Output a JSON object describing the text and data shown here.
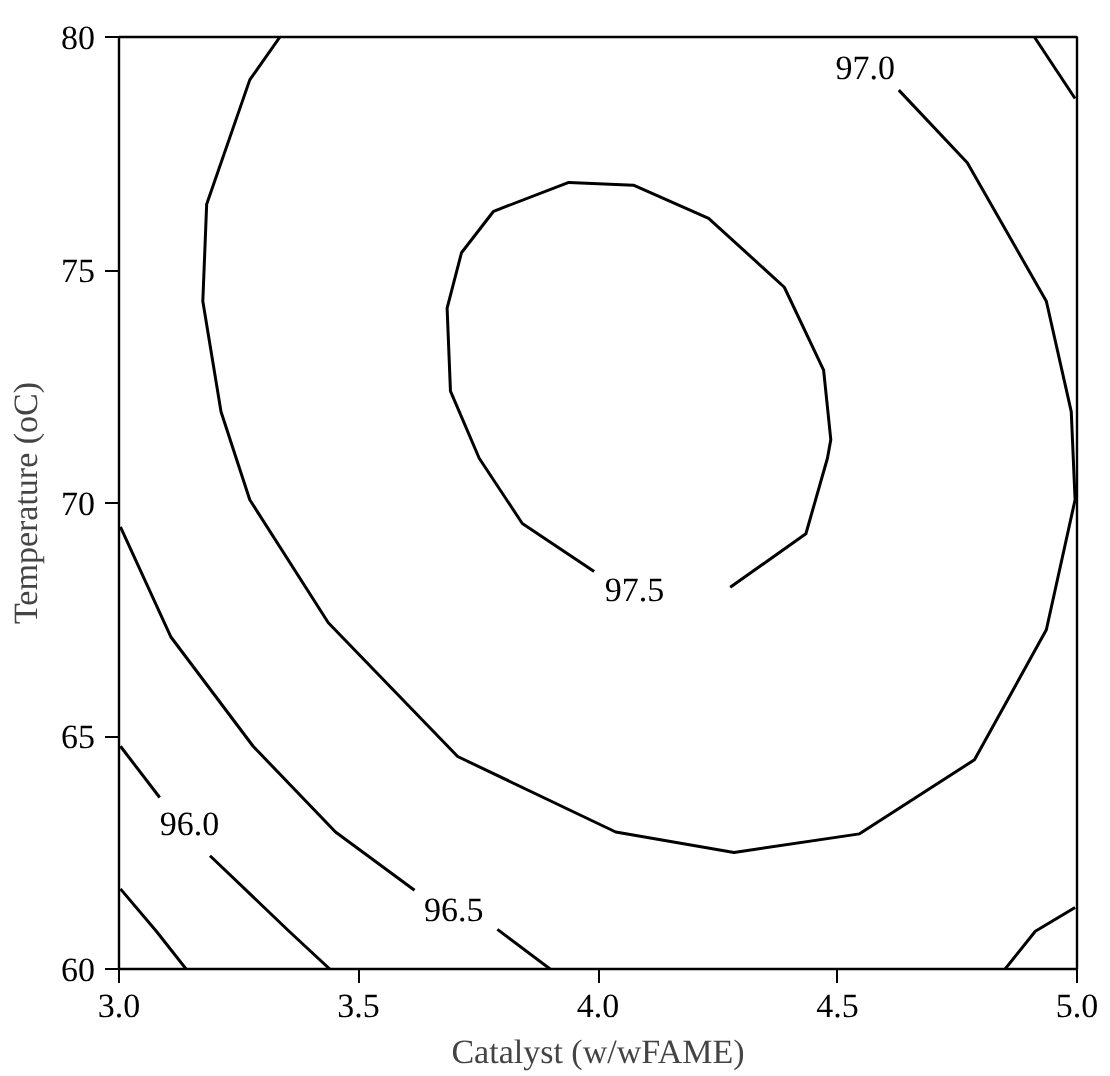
{
  "chart_data": {
    "type": "line",
    "xlabel": "Catalyst (w/wFAME)",
    "ylabel": "Temperature (oC)",
    "xlim": [
      3.0,
      5.0
    ],
    "ylim": [
      60,
      80
    ],
    "xticks": [
      {
        "value": 3.0,
        "label": "3.0"
      },
      {
        "value": 3.5,
        "label": "3.5"
      },
      {
        "value": 4.0,
        "label": "4.0"
      },
      {
        "value": 4.5,
        "label": "4.5"
      },
      {
        "value": 5.0,
        "label": "5.0"
      }
    ],
    "yticks": [
      60,
      65,
      70,
      75,
      80
    ],
    "grid": false,
    "marker": "none",
    "line_style": "solid",
    "series": [
      {
        "name": "97.5",
        "color": "#000000",
        "x": [
          4.276,
          4.434,
          4.479,
          4.486,
          4.471,
          4.389,
          4.231,
          4.074,
          3.939,
          3.782,
          3.715,
          3.685,
          3.692,
          3.752,
          3.842,
          3.992
        ],
        "values": [
          68.19,
          69.34,
          70.96,
          71.36,
          72.85,
          74.63,
          76.11,
          76.82,
          76.88,
          76.26,
          75.37,
          74.18,
          72.4,
          70.96,
          69.56,
          68.53
        ]
      },
      {
        "name": "97.0",
        "color": "#000000",
        "x": [
          3.336,
          3.273,
          3.183,
          3.175,
          3.213,
          3.273,
          3.437,
          3.707,
          4.037,
          4.284,
          4.546,
          4.786,
          4.936,
          4.996,
          4.988,
          4.936,
          4.771,
          4.628
        ],
        "values": [
          80.0,
          79.08,
          76.41,
          74.33,
          71.96,
          70.07,
          67.43,
          64.56,
          62.94,
          62.5,
          62.9,
          64.49,
          67.28,
          70.07,
          71.96,
          74.33,
          77.3,
          78.86
        ]
      },
      {
        "color": "#000000",
        "x": [
          4.911,
          4.996
        ],
        "values": [
          80.0,
          78.68
        ]
      },
      {
        "name": "96.5",
        "color": "#000000",
        "x": [
          3.003,
          3.108,
          3.28,
          3.452,
          3.617
        ],
        "values": [
          69.49,
          67.13,
          64.78,
          62.94,
          61.69
        ]
      },
      {
        "color": "#000000",
        "x": [
          3.79,
          3.9
        ],
        "values": [
          60.85,
          60.0
        ]
      },
      {
        "name": "96.0",
        "color": "#000000",
        "x": [
          3.003,
          3.085
        ],
        "values": [
          64.78,
          63.68
        ]
      },
      {
        "color": "#000000",
        "x": [
          3.19,
          3.355,
          3.44
        ],
        "values": [
          62.43,
          60.81,
          60.0
        ]
      },
      {
        "color": "#000000",
        "x": [
          3.003,
          3.078,
          3.14
        ],
        "values": [
          61.72,
          60.81,
          60.0
        ]
      },
      {
        "color": "#000000",
        "x": [
          4.996,
          4.913,
          4.85
        ],
        "values": [
          61.32,
          60.81,
          60.0
        ]
      }
    ]
  }
}
